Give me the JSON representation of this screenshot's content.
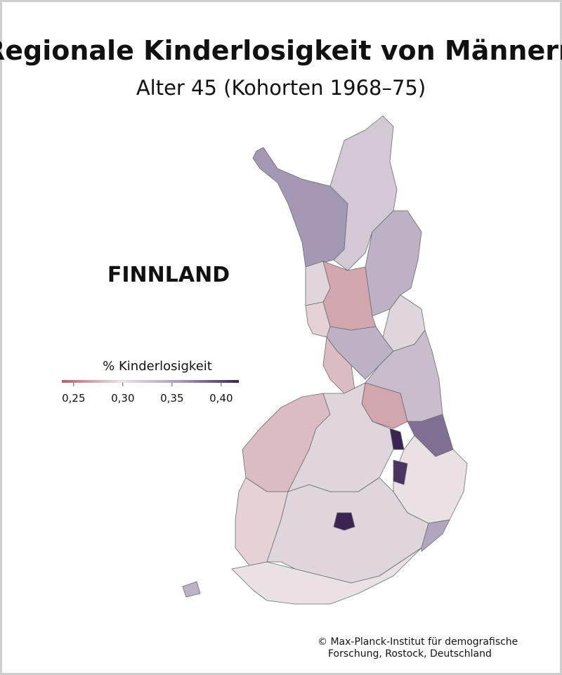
{
  "header": {
    "title": "Regionale Kinderlosigkeit von Männern",
    "subtitle": "Alter 45 (Kohorten 1968–75)"
  },
  "map": {
    "label": "FINNLAND",
    "legend": {
      "title": "% Kinderlosigkeit",
      "lim": [
        0.238,
        0.418
      ],
      "ticks": [
        {
          "value": 0.25,
          "label": "0,25"
        },
        {
          "value": 0.3,
          "label": "0,30"
        },
        {
          "value": 0.35,
          "label": "0,35"
        },
        {
          "value": 0.4,
          "label": "0,40"
        }
      ],
      "colors": [
        "#b5606f",
        "#ebe3e6",
        "#a99cb8",
        "#3a2552"
      ]
    },
    "regions": [
      {
        "value": 0.36
      },
      {
        "value": 0.32
      },
      {
        "value": 0.34
      },
      {
        "value": 0.27
      },
      {
        "value": 0.31
      },
      {
        "value": 0.29
      },
      {
        "value": 0.31
      },
      {
        "value": 0.34
      },
      {
        "value": 0.28
      },
      {
        "value": 0.33
      },
      {
        "value": 0.27
      },
      {
        "value": 0.38
      },
      {
        "value": 0.42
      },
      {
        "value": 0.28
      },
      {
        "value": 0.31
      },
      {
        "value": 0.3
      },
      {
        "value": 0.41
      },
      {
        "value": 0.29
      },
      {
        "value": 0.31
      },
      {
        "value": 0.42
      },
      {
        "value": 0.3
      },
      {
        "value": 0.35
      },
      {
        "value": 0.34
      }
    ]
  },
  "footer": {
    "credit_line1": "© Max-Planck-Institut für demografische",
    "credit_line2": "Forschung, Rostock, Deutschland"
  }
}
